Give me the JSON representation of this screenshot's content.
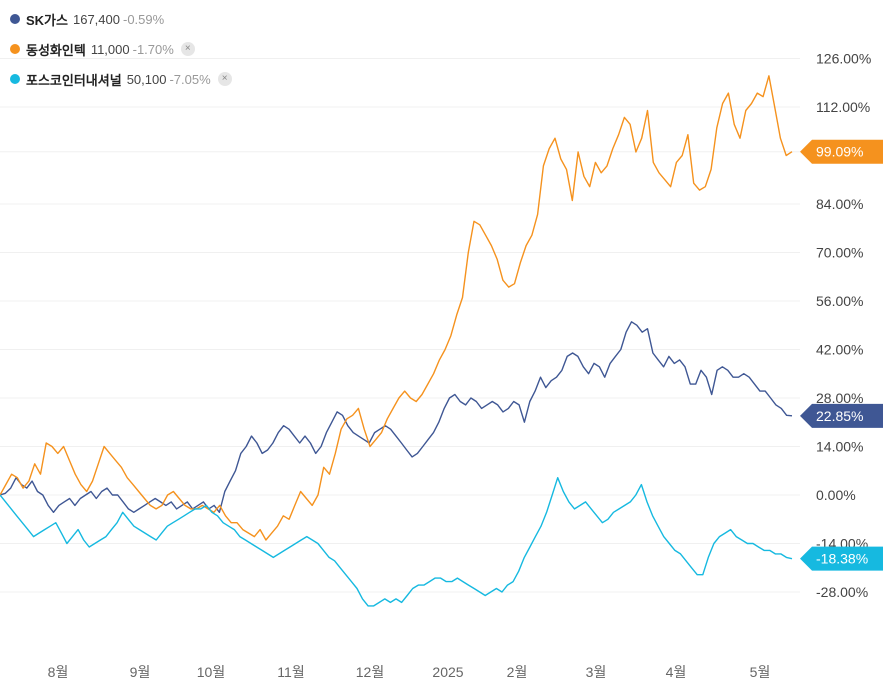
{
  "legend": [
    {
      "name": "SK가스",
      "price": "167,400",
      "change": "-0.59%",
      "color": "#3f5794",
      "removable": false
    },
    {
      "name": "동성화인텍",
      "price": "11,000",
      "change": "-1.70%",
      "color": "#f5921e",
      "removable": true
    },
    {
      "name": "포스코인터내셔널",
      "price": "50,100",
      "change": "-7.05%",
      "color": "#16b9e0",
      "removable": true
    }
  ],
  "remove_icon": "×",
  "chart_data": {
    "type": "line",
    "y_ticks": [
      "126.00%",
      "112.00%",
      "99.09%",
      "84.00%",
      "70.00%",
      "56.00%",
      "42.00%",
      "28.00%",
      "14.00%",
      "0.00%",
      "-14.00%",
      "-28.00%"
    ],
    "x_ticks": [
      "8월",
      "9월",
      "10월",
      "11월",
      "12월",
      "2025",
      "2월",
      "3월",
      "4월",
      "5월"
    ],
    "ylim": [
      -34,
      130
    ],
    "grid": true,
    "end_tags": [
      {
        "label": "99.09%",
        "value": 99.09,
        "color": "#f5921e"
      },
      {
        "label": "22.85%",
        "value": 22.85,
        "color": "#3f5794"
      },
      {
        "label": "-18.38%",
        "value": -18.38,
        "color": "#16b9e0"
      }
    ],
    "series": [
      {
        "name": "SK가스",
        "color": "#3f5794",
        "values": [
          0,
          0.5,
          2,
          5,
          3,
          2,
          4,
          1,
          0,
          -3,
          -5,
          -3,
          -2,
          -1,
          -3,
          -1,
          0,
          1,
          -1,
          1,
          2,
          0,
          0,
          -2,
          -4,
          -5,
          -4,
          -3,
          -2,
          -1,
          -2,
          -3,
          -2,
          -4,
          -3,
          -2,
          -4,
          -3,
          -2,
          -4,
          -3,
          -5,
          1,
          4,
          7,
          12,
          14,
          17,
          15,
          12,
          13,
          15,
          18,
          20,
          19,
          17,
          15,
          17,
          15,
          12,
          14,
          18,
          21,
          24,
          23,
          20,
          18,
          17,
          16,
          15,
          18,
          19,
          20,
          19,
          17,
          15,
          13,
          11,
          12,
          14,
          16,
          18,
          21,
          25,
          28,
          29,
          27,
          26,
          28,
          27,
          25,
          26,
          27,
          26,
          24,
          25,
          27,
          26,
          21,
          27,
          30,
          34,
          31,
          33,
          34,
          36,
          40,
          41,
          40,
          37,
          35,
          38,
          37,
          34,
          38,
          40,
          42,
          47,
          50,
          49,
          47,
          48,
          41,
          39,
          37,
          40,
          38,
          39,
          37,
          32,
          32,
          36,
          34,
          29,
          36,
          37,
          36,
          34,
          34,
          35,
          34,
          32,
          30,
          30,
          28,
          26,
          25,
          23,
          22.85
        ]
      },
      {
        "name": "동성화인텍",
        "color": "#f5921e",
        "values": [
          0,
          3,
          6,
          5,
          2,
          4,
          9,
          6,
          15,
          14,
          12,
          14,
          10,
          6,
          3,
          1,
          4,
          9,
          14,
          12,
          10,
          8,
          5,
          3,
          1,
          -1,
          -3,
          -4,
          -3,
          0,
          1,
          -1,
          -3,
          -4,
          -4,
          -3,
          -4,
          -5,
          -3,
          -6,
          -8,
          -8,
          -10,
          -11,
          -12,
          -10,
          -13,
          -11,
          -9,
          -6,
          -7,
          -3,
          1,
          -1,
          -3,
          0,
          8,
          6,
          12,
          19,
          22,
          23,
          25,
          19,
          14,
          16,
          18,
          22,
          25,
          28,
          30,
          28,
          27,
          29,
          32,
          35,
          39,
          42,
          46,
          52,
          57,
          70,
          79,
          78,
          75,
          72,
          68,
          62,
          60,
          61,
          67,
          72,
          75,
          81,
          95,
          100,
          103,
          97,
          94,
          85,
          99,
          92,
          89,
          96,
          93,
          95,
          100,
          104,
          109,
          107,
          99,
          103,
          111,
          96,
          93,
          91,
          89,
          96,
          98,
          104,
          90,
          88,
          89,
          94,
          106,
          113,
          116,
          107,
          103,
          111,
          113,
          116,
          115,
          121,
          112,
          103,
          98,
          99.09
        ]
      },
      {
        "name": "포스코인터내셔널",
        "color": "#16b9e0",
        "values": [
          0,
          -2,
          -4,
          -6,
          -8,
          -10,
          -12,
          -11,
          -10,
          -9,
          -8,
          -11,
          -14,
          -12,
          -10,
          -13,
          -15,
          -14,
          -13,
          -12,
          -10,
          -8,
          -5,
          -7,
          -9,
          -10,
          -11,
          -12,
          -13,
          -11,
          -9,
          -8,
          -7,
          -6,
          -5,
          -4,
          -4,
          -3,
          -5,
          -6,
          -8,
          -9,
          -10,
          -12,
          -13,
          -14,
          -15,
          -16,
          -17,
          -18,
          -17,
          -16,
          -15,
          -14,
          -13,
          -12,
          -13,
          -14,
          -16,
          -18,
          -19,
          -21,
          -23,
          -25,
          -27,
          -30,
          -32,
          -32,
          -31,
          -30,
          -31,
          -30,
          -31,
          -29,
          -27,
          -26,
          -26,
          -25,
          -24,
          -24,
          -25,
          -25,
          -24,
          -25,
          -26,
          -27,
          -28,
          -29,
          -28,
          -27,
          -28,
          -26,
          -25,
          -22,
          -18,
          -15,
          -12,
          -9,
          -5,
          0,
          5,
          1,
          -2,
          -4,
          -3,
          -2,
          -4,
          -6,
          -8,
          -7,
          -5,
          -4,
          -3,
          -2,
          0,
          3,
          -2,
          -6,
          -9,
          -12,
          -14,
          -16,
          -17,
          -19,
          -21,
          -23,
          -23,
          -18,
          -14,
          -12,
          -11,
          -10,
          -12,
          -13,
          -14,
          -14,
          -15,
          -16,
          -16,
          -17,
          -17,
          -18,
          -18.38
        ]
      }
    ]
  }
}
